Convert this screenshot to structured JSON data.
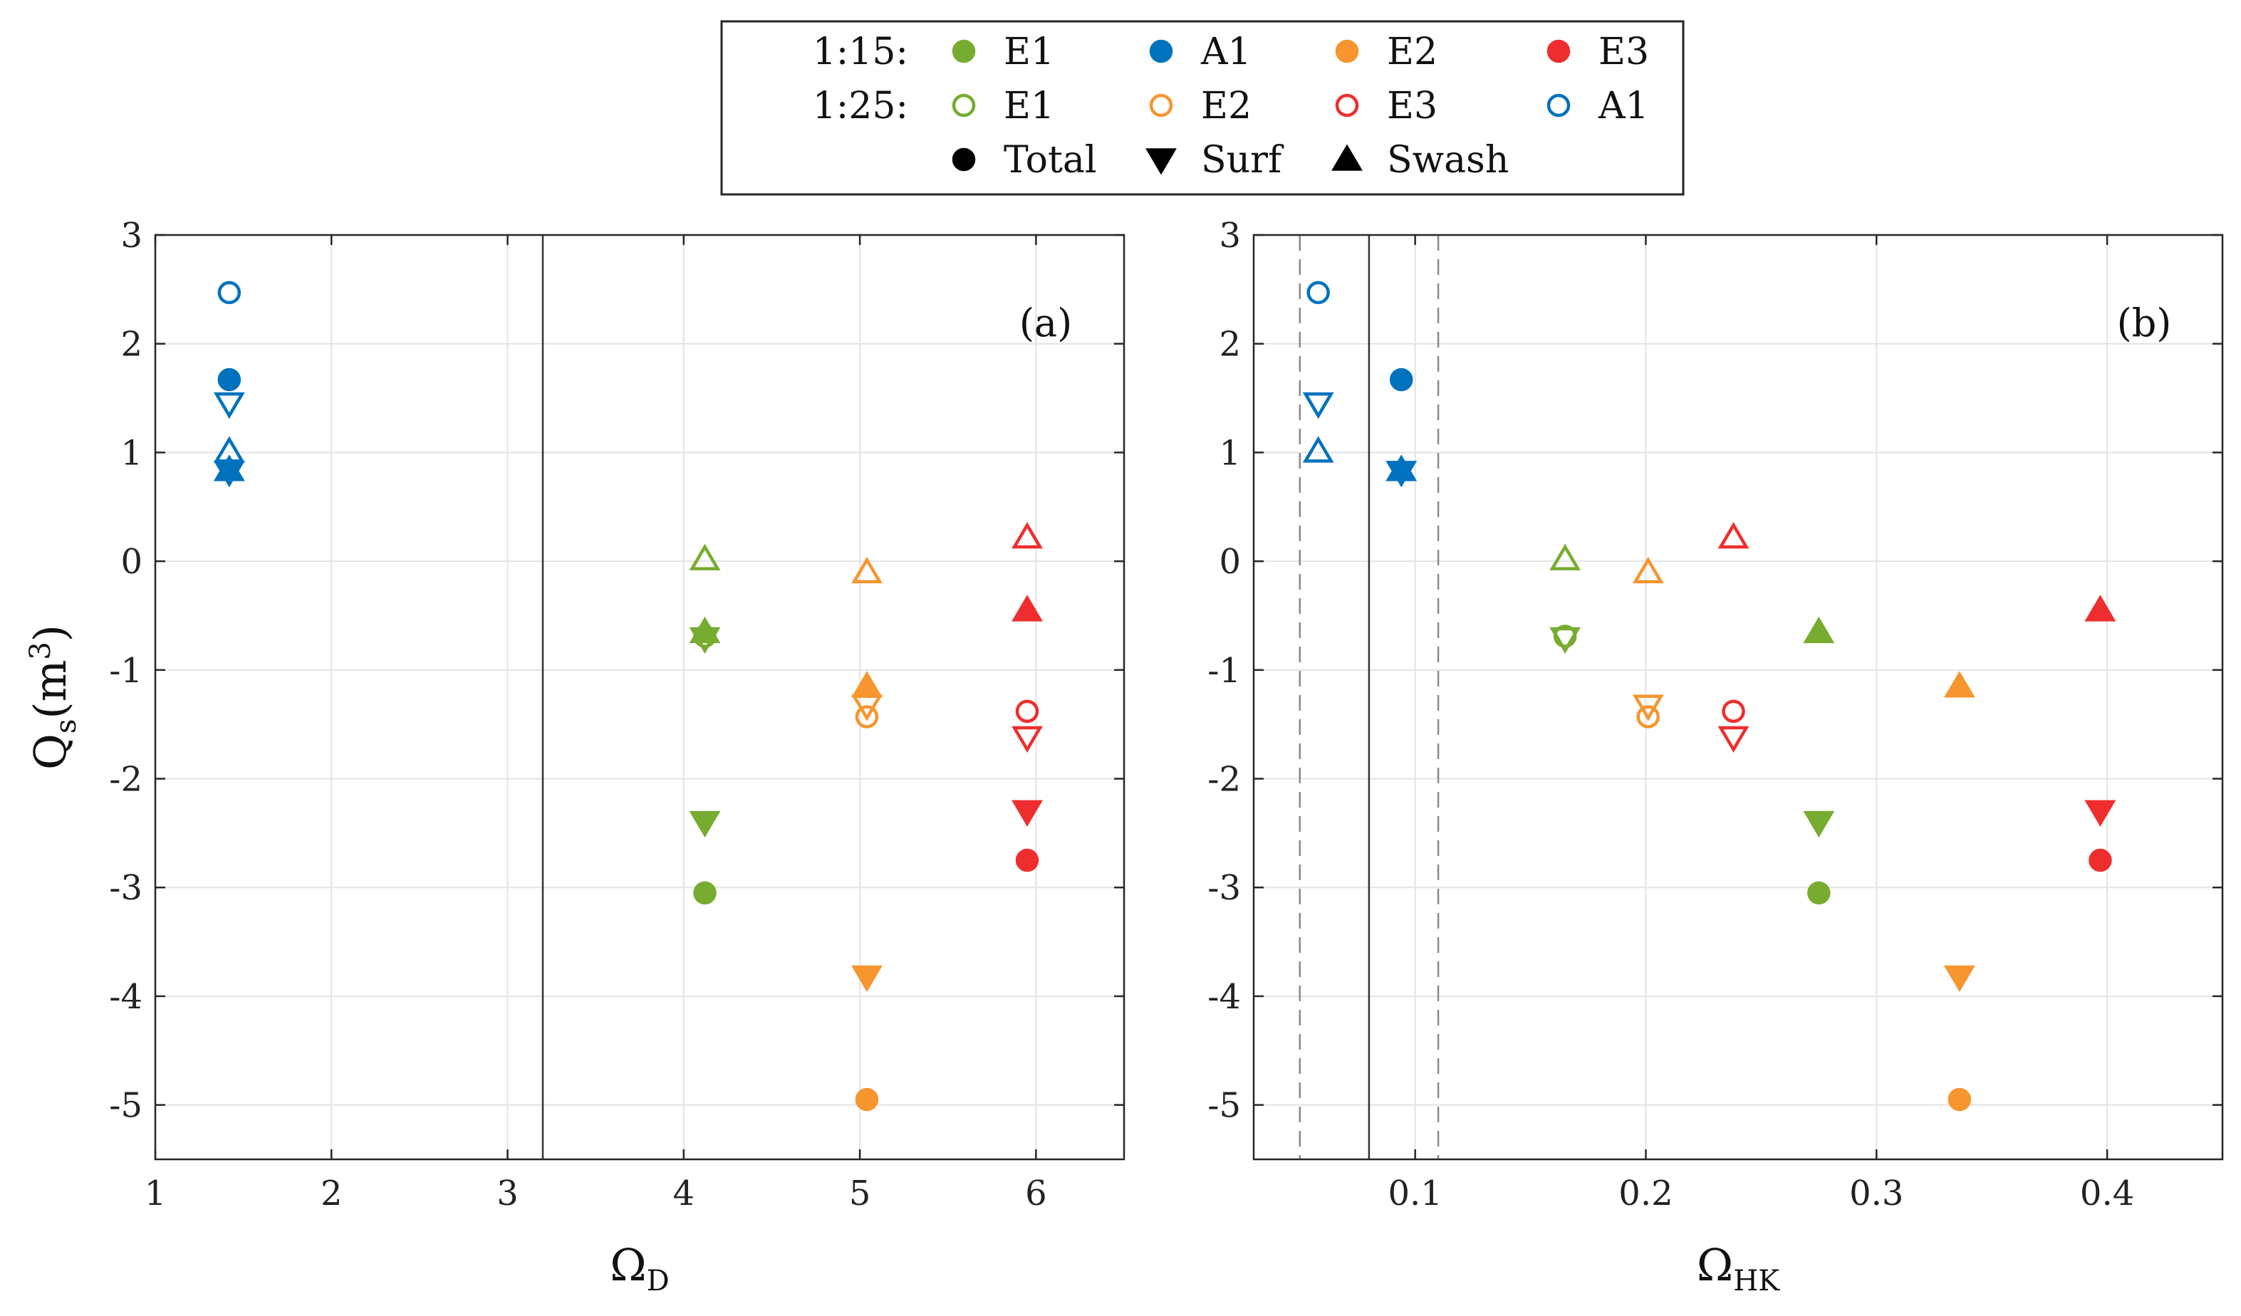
{
  "legend": {
    "rows": [
      {
        "label": "1:15:",
        "items": [
          {
            "series": "E1",
            "label": "E1",
            "fill": "filled",
            "marker": "circle"
          },
          {
            "series": "A1",
            "label": "A1",
            "fill": "filled",
            "marker": "circle"
          },
          {
            "series": "E2",
            "label": "E2",
            "fill": "filled",
            "marker": "circle"
          },
          {
            "series": "E3",
            "label": "E3",
            "fill": "filled",
            "marker": "circle"
          }
        ]
      },
      {
        "label": "1:25:",
        "items": [
          {
            "series": "E1",
            "label": "E1",
            "fill": "open",
            "marker": "circle"
          },
          {
            "series": "E2",
            "label": "E2",
            "fill": "open",
            "marker": "circle"
          },
          {
            "series": "E3",
            "label": "E3",
            "fill": "open",
            "marker": "circle"
          },
          {
            "series": "A1",
            "label": "A1",
            "fill": "open",
            "marker": "circle"
          }
        ]
      },
      {
        "label": "",
        "items": [
          {
            "series": "black",
            "label": "Total",
            "fill": "filled",
            "marker": "circle"
          },
          {
            "series": "black",
            "label": "Surf",
            "fill": "filled",
            "marker": "tri-down"
          },
          {
            "series": "black",
            "label": "Swash",
            "fill": "filled",
            "marker": "tri-up"
          }
        ]
      }
    ]
  },
  "colors": {
    "E1": "#77AC30",
    "A1": "#0072BD",
    "E2": "#F7952E",
    "E3": "#EE2E2E",
    "black": "#000000",
    "grid": "#E3E3E3"
  },
  "chart_data": [
    {
      "type": "scatter",
      "panel_label": "(a)",
      "xlabel": "Ω",
      "xlabel_sub": "D",
      "ylabel": "Q",
      "ylabel_sub": "s",
      "ylabel_unit": "(m",
      "ylabel_sup": "3",
      "ylabel_close": ")",
      "xlim": [
        1,
        6.5
      ],
      "ylim": [
        -5.5,
        3
      ],
      "xticks": [
        1,
        2,
        3,
        4,
        5,
        6
      ],
      "xtick_labels": [
        "1",
        "2",
        "3",
        "4",
        "5",
        "6"
      ],
      "yticks": [
        3,
        2,
        1,
        0,
        -1,
        -2,
        -3,
        -4,
        -5
      ],
      "ytick_labels": [
        "3",
        "2",
        "1",
        "0",
        "-1",
        "-2",
        "-3",
        "-4",
        "-5"
      ],
      "grid": true,
      "reference_lines": [
        {
          "x": 3.2,
          "style": "solid"
        }
      ],
      "points": [
        {
          "series": "A1",
          "scale": "1:25",
          "kind": "Total",
          "x": 1.42,
          "y": 2.47
        },
        {
          "series": "A1",
          "scale": "1:15",
          "kind": "Total",
          "x": 1.42,
          "y": 1.67
        },
        {
          "series": "A1",
          "scale": "1:25",
          "kind": "Surf",
          "x": 1.42,
          "y": 1.45
        },
        {
          "series": "A1",
          "scale": "1:25",
          "kind": "Swash",
          "x": 1.42,
          "y": 1.01
        },
        {
          "series": "A1",
          "scale": "1:15",
          "kind": "Swash",
          "x": 1.42,
          "y": 0.84
        },
        {
          "series": "A1",
          "scale": "1:15",
          "kind": "Surf",
          "x": 1.42,
          "y": 0.82
        },
        {
          "series": "E1",
          "scale": "1:25",
          "kind": "Swash",
          "x": 4.12,
          "y": 0.02
        },
        {
          "series": "E1",
          "scale": "1:25",
          "kind": "Total",
          "x": 4.12,
          "y": -0.69
        },
        {
          "series": "E1",
          "scale": "1:25",
          "kind": "Surf",
          "x": 4.12,
          "y": -0.71
        },
        {
          "series": "E1",
          "scale": "1:15",
          "kind": "Swash",
          "x": 4.12,
          "y": -0.65
        },
        {
          "series": "E1",
          "scale": "1:15",
          "kind": "Surf",
          "x": 4.12,
          "y": -2.4
        },
        {
          "series": "E1",
          "scale": "1:15",
          "kind": "Total",
          "x": 4.12,
          "y": -3.05
        },
        {
          "series": "E2",
          "scale": "1:25",
          "kind": "Swash",
          "x": 5.04,
          "y": -0.1
        },
        {
          "series": "E2",
          "scale": "1:15",
          "kind": "Swash",
          "x": 5.04,
          "y": -1.15
        },
        {
          "series": "E2",
          "scale": "1:25",
          "kind": "Surf",
          "x": 5.04,
          "y": -1.33
        },
        {
          "series": "E2",
          "scale": "1:25",
          "kind": "Total",
          "x": 5.04,
          "y": -1.43
        },
        {
          "series": "E2",
          "scale": "1:15",
          "kind": "Surf",
          "x": 5.04,
          "y": -3.82
        },
        {
          "series": "E2",
          "scale": "1:15",
          "kind": "Total",
          "x": 5.04,
          "y": -4.95
        },
        {
          "series": "E3",
          "scale": "1:25",
          "kind": "Swash",
          "x": 5.95,
          "y": 0.22
        },
        {
          "series": "E3",
          "scale": "1:15",
          "kind": "Swash",
          "x": 5.95,
          "y": -0.45
        },
        {
          "series": "E3",
          "scale": "1:25",
          "kind": "Total",
          "x": 5.95,
          "y": -1.38
        },
        {
          "series": "E3",
          "scale": "1:25",
          "kind": "Surf",
          "x": 5.95,
          "y": -1.62
        },
        {
          "series": "E3",
          "scale": "1:15",
          "kind": "Surf",
          "x": 5.95,
          "y": -2.3
        },
        {
          "series": "E3",
          "scale": "1:15",
          "kind": "Total",
          "x": 5.95,
          "y": -2.75
        }
      ]
    },
    {
      "type": "scatter",
      "panel_label": "(b)",
      "xlabel": "Ω",
      "xlabel_sub": "HK",
      "xlim": [
        0.03,
        0.45
      ],
      "ylim": [
        -5.5,
        3
      ],
      "xticks": [
        0.1,
        0.2,
        0.3,
        0.4
      ],
      "xtick_labels": [
        "0.1",
        "0.2",
        "0.3",
        "0.4"
      ],
      "yticks": [
        3,
        2,
        1,
        0,
        -1,
        -2,
        -3,
        -4,
        -5
      ],
      "ytick_labels": [
        "3",
        "2",
        "1",
        "0",
        "-1",
        "-2",
        "-3",
        "-4",
        "-5"
      ],
      "grid": true,
      "reference_lines": [
        {
          "x": 0.05,
          "style": "dashed"
        },
        {
          "x": 0.08,
          "style": "solid"
        },
        {
          "x": 0.11,
          "style": "dashed"
        }
      ],
      "points": [
        {
          "series": "A1",
          "scale": "1:25",
          "kind": "Total",
          "x": 0.058,
          "y": 2.47
        },
        {
          "series": "A1",
          "scale": "1:25",
          "kind": "Surf",
          "x": 0.058,
          "y": 1.45
        },
        {
          "series": "A1",
          "scale": "1:25",
          "kind": "Swash",
          "x": 0.058,
          "y": 1.01
        },
        {
          "series": "A1",
          "scale": "1:15",
          "kind": "Total",
          "x": 0.094,
          "y": 1.67
        },
        {
          "series": "A1",
          "scale": "1:15",
          "kind": "Swash",
          "x": 0.094,
          "y": 0.84
        },
        {
          "series": "A1",
          "scale": "1:15",
          "kind": "Surf",
          "x": 0.094,
          "y": 0.82
        },
        {
          "series": "E1",
          "scale": "1:25",
          "kind": "Swash",
          "x": 0.165,
          "y": 0.02
        },
        {
          "series": "E1",
          "scale": "1:25",
          "kind": "Total",
          "x": 0.165,
          "y": -0.69
        },
        {
          "series": "E1",
          "scale": "1:25",
          "kind": "Surf",
          "x": 0.165,
          "y": -0.71
        },
        {
          "series": "E2",
          "scale": "1:25",
          "kind": "Swash",
          "x": 0.201,
          "y": -0.1
        },
        {
          "series": "E2",
          "scale": "1:25",
          "kind": "Surf",
          "x": 0.201,
          "y": -1.33
        },
        {
          "series": "E2",
          "scale": "1:25",
          "kind": "Total",
          "x": 0.201,
          "y": -1.43
        },
        {
          "series": "E3",
          "scale": "1:25",
          "kind": "Swash",
          "x": 0.238,
          "y": 0.22
        },
        {
          "series": "E3",
          "scale": "1:25",
          "kind": "Total",
          "x": 0.238,
          "y": -1.38
        },
        {
          "series": "E3",
          "scale": "1:25",
          "kind": "Surf",
          "x": 0.238,
          "y": -1.62
        },
        {
          "series": "E1",
          "scale": "1:15",
          "kind": "Swash",
          "x": 0.275,
          "y": -0.65
        },
        {
          "series": "E1",
          "scale": "1:15",
          "kind": "Surf",
          "x": 0.275,
          "y": -2.4
        },
        {
          "series": "E1",
          "scale": "1:15",
          "kind": "Total",
          "x": 0.275,
          "y": -3.05
        },
        {
          "series": "E2",
          "scale": "1:15",
          "kind": "Swash",
          "x": 0.336,
          "y": -1.15
        },
        {
          "series": "E2",
          "scale": "1:15",
          "kind": "Surf",
          "x": 0.336,
          "y": -3.82
        },
        {
          "series": "E2",
          "scale": "1:15",
          "kind": "Total",
          "x": 0.336,
          "y": -4.95
        },
        {
          "series": "E3",
          "scale": "1:15",
          "kind": "Swash",
          "x": 0.397,
          "y": -0.45
        },
        {
          "series": "E3",
          "scale": "1:15",
          "kind": "Surf",
          "x": 0.397,
          "y": -2.3
        },
        {
          "series": "E3",
          "scale": "1:15",
          "kind": "Total",
          "x": 0.397,
          "y": -2.75
        }
      ]
    }
  ]
}
